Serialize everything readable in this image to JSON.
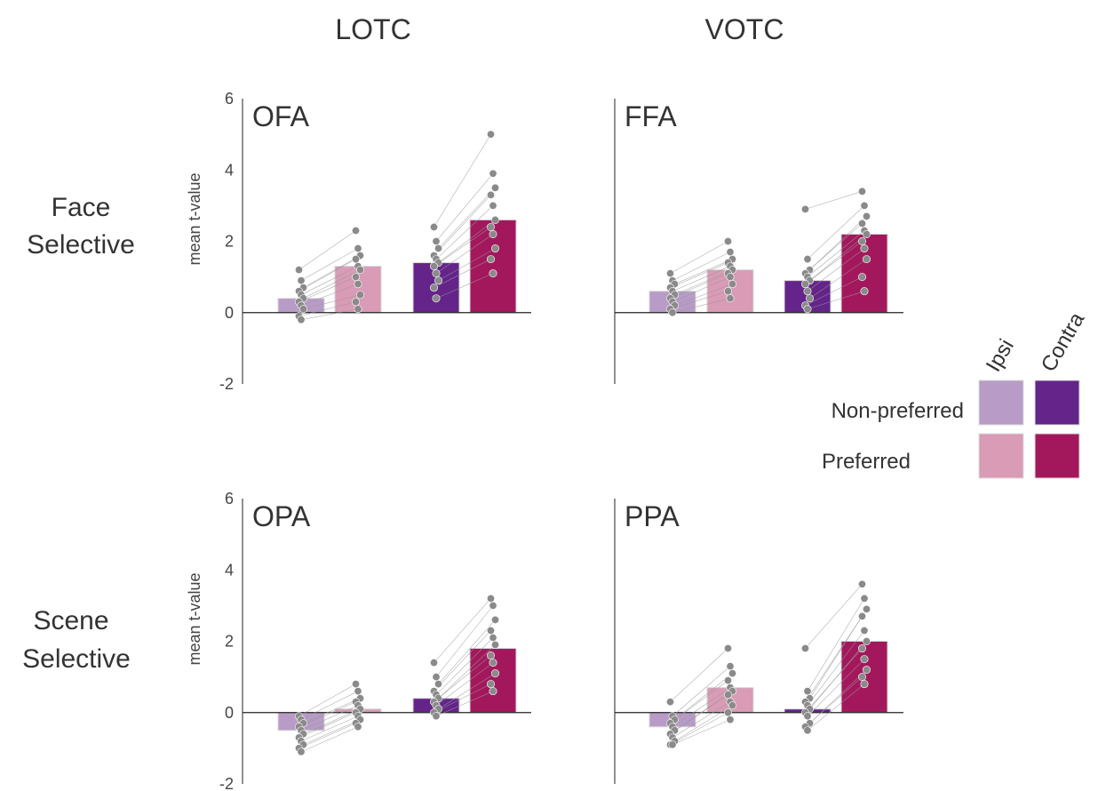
{
  "columns": [
    "LOTC",
    "VOTC"
  ],
  "rows": [
    {
      "line1": "Face",
      "line2": "Selective"
    },
    {
      "line1": "Scene",
      "line2": "Selective"
    }
  ],
  "ylabel": "mean t-value",
  "legend": {
    "col_labels": [
      "Ipsi",
      "Contra"
    ],
    "row_labels": [
      "Non-preferred",
      "Preferred"
    ]
  },
  "colors": {
    "nonpref_ipsi": "#b89bc7",
    "pref_ipsi": "#d99bb5",
    "nonpref_contra": "#64248a",
    "pref_contra": "#a3185c",
    "points": "#8a8a8a",
    "lines": "#9a9a9a",
    "axis": "#222222"
  },
  "chart_data": [
    {
      "type": "bar",
      "title": "OFA",
      "ylabel": "mean t-value",
      "ylim": [
        -2,
        6
      ],
      "yticks": [
        -2,
        0,
        2,
        4,
        6
      ],
      "categories": [
        "Non-preferred Ipsi",
        "Preferred Ipsi",
        "Non-preferred Contra",
        "Preferred Contra"
      ],
      "values": [
        0.4,
        1.3,
        1.4,
        2.6
      ],
      "points": [
        [
          1.2,
          0.9,
          0.7,
          0.6,
          0.5,
          0.4,
          0.3,
          0.2,
          0.1,
          -0.1,
          -0.2
        ],
        [
          2.3,
          1.8,
          1.6,
          1.5,
          1.3,
          1.2,
          1.0,
          0.8,
          0.5,
          0.3,
          0.1
        ],
        [
          2.4,
          2.0,
          1.8,
          1.6,
          1.5,
          1.4,
          1.3,
          1.1,
          0.9,
          0.7,
          0.4
        ],
        [
          5.0,
          3.9,
          3.5,
          3.3,
          3.0,
          2.6,
          2.4,
          2.2,
          1.8,
          1.5,
          1.1
        ]
      ]
    },
    {
      "type": "bar",
      "title": "FFA",
      "ylim": [
        -2,
        6
      ],
      "categories": [
        "Non-preferred Ipsi",
        "Preferred Ipsi",
        "Non-preferred Contra",
        "Preferred Contra"
      ],
      "values": [
        0.6,
        1.2,
        0.9,
        2.2
      ],
      "points": [
        [
          1.1,
          0.9,
          0.8,
          0.7,
          0.6,
          0.5,
          0.4,
          0.3,
          0.2,
          0.1,
          0.0
        ],
        [
          2.0,
          1.7,
          1.5,
          1.4,
          1.3,
          1.2,
          1.1,
          1.0,
          0.8,
          0.6,
          0.4
        ],
        [
          2.9,
          1.5,
          1.2,
          1.1,
          1.0,
          0.9,
          0.8,
          0.6,
          0.4,
          0.2,
          0.1
        ],
        [
          3.4,
          3.0,
          2.7,
          2.5,
          2.3,
          2.2,
          2.0,
          1.8,
          1.5,
          1.0,
          0.6
        ]
      ]
    },
    {
      "type": "bar",
      "title": "OPA",
      "ylabel": "mean t-value",
      "ylim": [
        -2,
        6
      ],
      "yticks": [
        -2,
        0,
        2,
        4,
        6
      ],
      "categories": [
        "Non-preferred Ipsi",
        "Preferred Ipsi",
        "Non-preferred Contra",
        "Preferred Contra"
      ],
      "values": [
        -0.5,
        0.1,
        0.4,
        1.8
      ],
      "points": [
        [
          -0.1,
          -0.2,
          -0.3,
          -0.4,
          -0.5,
          -0.6,
          -0.7,
          -0.8,
          -0.9,
          -1.0,
          -1.1
        ],
        [
          0.8,
          0.6,
          0.4,
          0.3,
          0.2,
          0.1,
          0.0,
          -0.1,
          -0.2,
          -0.3,
          -0.4
        ],
        [
          1.4,
          1.0,
          0.8,
          0.6,
          0.5,
          0.4,
          0.3,
          0.2,
          0.1,
          0.0,
          -0.1
        ],
        [
          3.2,
          3.0,
          2.6,
          2.3,
          2.1,
          1.9,
          1.6,
          1.4,
          1.1,
          0.8,
          0.6
        ]
      ]
    },
    {
      "type": "bar",
      "title": "PPA",
      "ylim": [
        -2,
        6
      ],
      "categories": [
        "Non-preferred Ipsi",
        "Preferred Ipsi",
        "Non-preferred Contra",
        "Preferred Contra"
      ],
      "values": [
        -0.4,
        0.7,
        0.1,
        2.0
      ],
      "points": [
        [
          0.3,
          -0.1,
          -0.2,
          -0.3,
          -0.4,
          -0.5,
          -0.6,
          -0.7,
          -0.8,
          -0.9,
          -0.9
        ],
        [
          1.8,
          1.3,
          1.1,
          0.9,
          0.7,
          0.6,
          0.5,
          0.3,
          0.2,
          0.0,
          -0.2
        ],
        [
          1.8,
          0.6,
          0.4,
          0.3,
          0.2,
          0.1,
          0.0,
          -0.1,
          -0.3,
          -0.4,
          -0.5
        ],
        [
          3.6,
          3.2,
          2.9,
          2.7,
          2.3,
          2.0,
          1.8,
          1.5,
          1.2,
          1.0,
          0.8
        ]
      ]
    }
  ]
}
